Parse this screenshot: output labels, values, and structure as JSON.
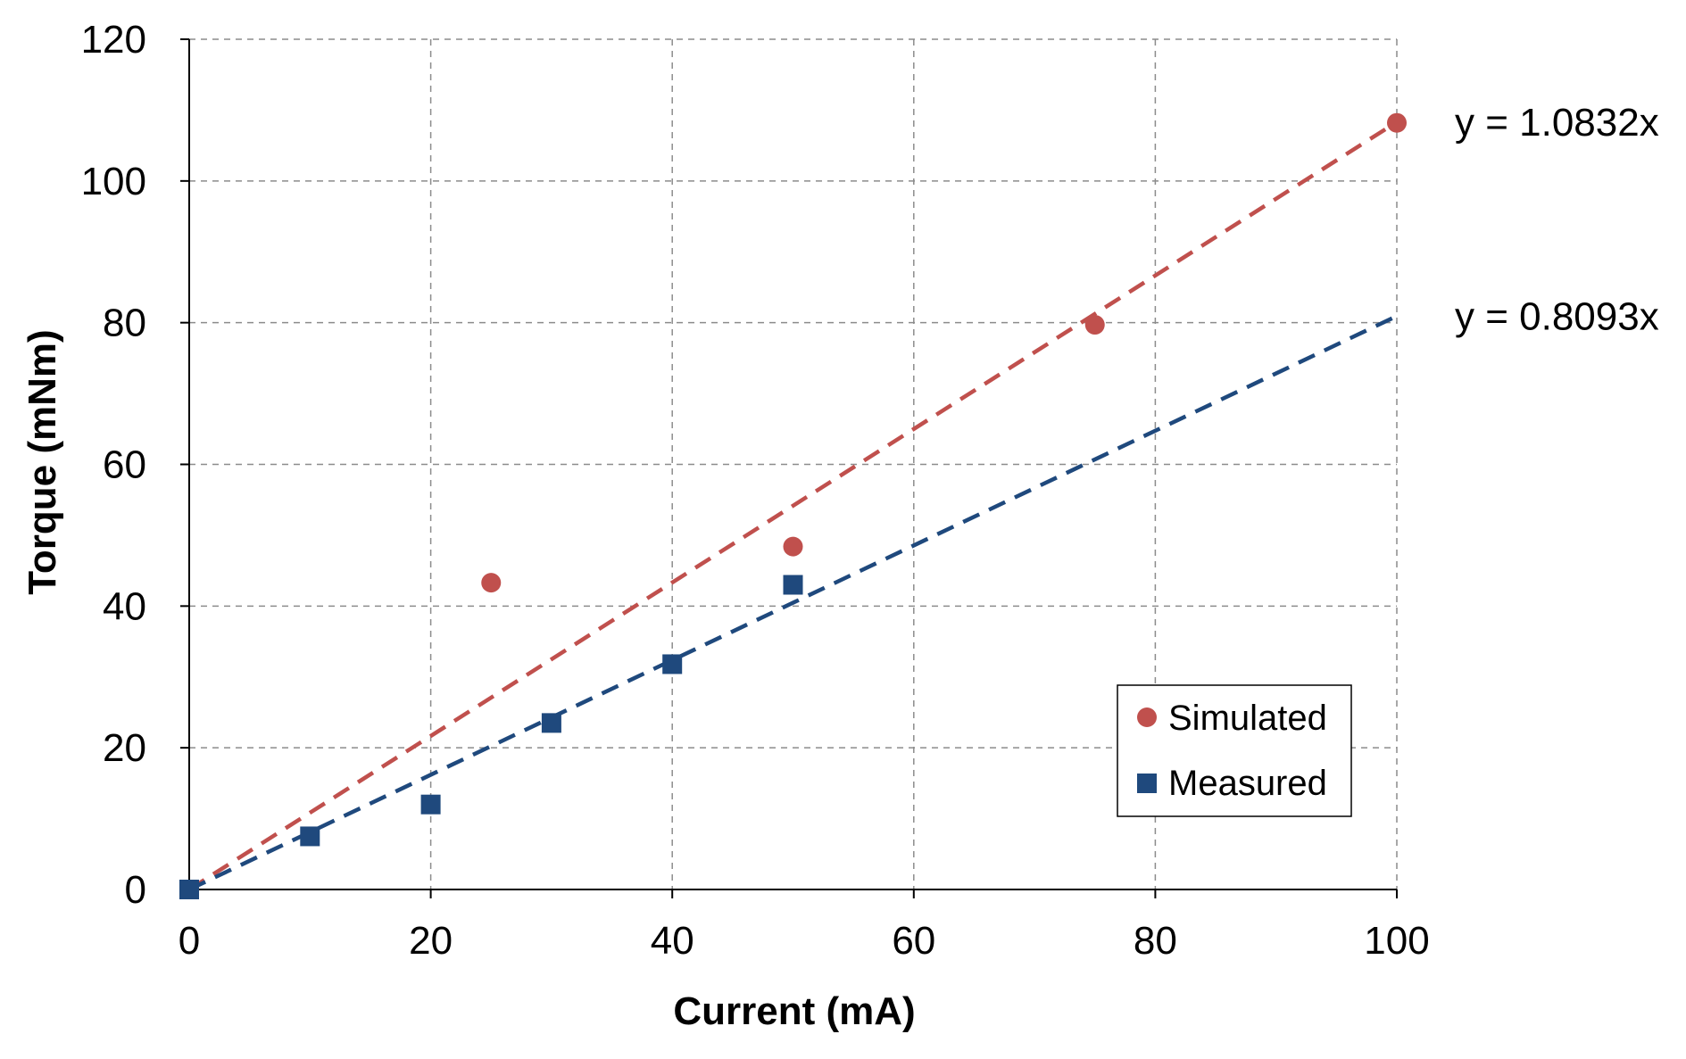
{
  "chart_data": {
    "type": "scatter",
    "title": "",
    "xlabel": "Current (mA)",
    "ylabel": "Torque (mNm)",
    "xlim": [
      0,
      100
    ],
    "ylim": [
      0,
      120
    ],
    "x_ticks": [
      0,
      20,
      40,
      60,
      80,
      100
    ],
    "y_ticks": [
      0,
      20,
      40,
      60,
      80,
      100,
      120
    ],
    "grid": true,
    "legend_position": "bottom-right",
    "series": [
      {
        "name": "Simulated",
        "marker": "circle",
        "color": "#c0504d",
        "x": [
          0,
          25,
          50,
          75,
          100
        ],
        "y": [
          0,
          43.3,
          48.4,
          79.7,
          108.2
        ],
        "trendline": {
          "slope": 1.0832,
          "label": "y = 1.0832x"
        }
      },
      {
        "name": "Measured",
        "marker": "square",
        "color": "#1f497d",
        "x": [
          0,
          10,
          20,
          30,
          40,
          50
        ],
        "y": [
          0,
          7.5,
          12.0,
          23.5,
          31.8,
          43.0
        ],
        "trendline": {
          "slope": 0.8093,
          "label": "y = 0.8093x"
        }
      }
    ]
  }
}
